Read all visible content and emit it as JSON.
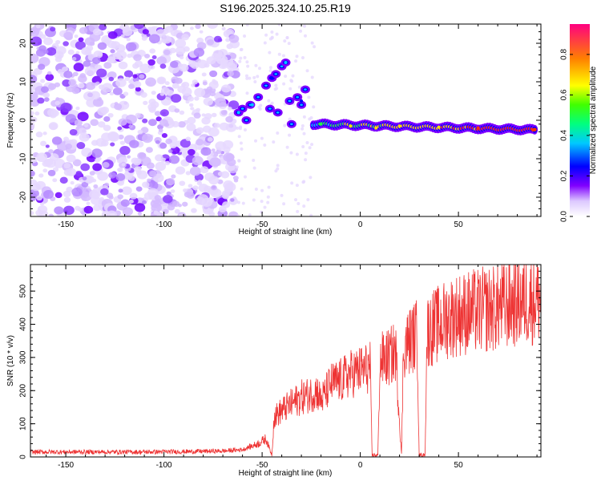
{
  "title": "S196.2025.324.10.25.R19",
  "chart_data": [
    {
      "type": "heatmap",
      "title": "S196.2025.324.10.25.R19",
      "xlabel": "Height of straight line (km)",
      "ylabel": "Frequency (Hz)",
      "xlim": [
        -168,
        92
      ],
      "ylim": [
        -25,
        25
      ],
      "xticks": [
        -150,
        -100,
        -50,
        0,
        50
      ],
      "xtick_labels": [
        "-150",
        "-100",
        "-50",
        "0",
        "50"
      ],
      "yticks": [
        -20,
        -10,
        0,
        10,
        20
      ],
      "ytick_labels": [
        "-20",
        "-10",
        "0",
        "10",
        "20"
      ],
      "colorbar": {
        "label": "Normalized spectral amplitude",
        "range": [
          0,
          0.95
        ],
        "ticks": [
          0,
          0.2,
          0.4,
          0.6,
          0.8
        ],
        "tick_labels": [
          "0.0",
          "0.2",
          "0.4",
          "0.6",
          "0.8"
        ]
      },
      "description_points": [
        {
          "height_km": -62,
          "freq_hz": 2,
          "amplitude": 0.3
        },
        {
          "height_km": -55,
          "freq_hz": 4,
          "amplitude": 0.3
        },
        {
          "height_km": -45,
          "freq_hz": 11,
          "amplitude": 0.2
        },
        {
          "height_km": -38,
          "freq_hz": 15,
          "amplitude": 0.3
        },
        {
          "height_km": -30,
          "freq_hz": 5,
          "amplitude": 0.25
        },
        {
          "height_km": -20,
          "freq_hz": -1,
          "amplitude": 0.45
        },
        {
          "height_km": -5,
          "freq_hz": -1.5,
          "amplitude": 0.55
        },
        {
          "height_km": 8,
          "freq_hz": -2,
          "amplitude": 0.6
        },
        {
          "height_km": 20,
          "freq_hz": -1.5,
          "amplitude": 0.55
        },
        {
          "height_km": 40,
          "freq_hz": -1.8,
          "amplitude": 0.65
        },
        {
          "height_km": 60,
          "freq_hz": -2,
          "amplitude": 0.8
        },
        {
          "height_km": 88,
          "freq_hz": -2.5,
          "amplitude": 0.85
        }
      ]
    },
    {
      "type": "line",
      "xlabel": "Height of straight line (km)",
      "ylabel": "SNR (10 * v/v)",
      "xlim": [
        -168,
        92
      ],
      "ylim": [
        0,
        580
      ],
      "xticks": [
        -150,
        -100,
        -50,
        0,
        50
      ],
      "xtick_labels": [
        "-150",
        "-100",
        "-50",
        "0",
        "50"
      ],
      "yticks": [
        0,
        100,
        200,
        300,
        400,
        500
      ],
      "ytick_labels": [
        "0",
        "100",
        "200",
        "300",
        "400",
        "500"
      ],
      "series": [
        {
          "name": "SNR",
          "color": "#ee3333",
          "x": [
            -168,
            -150,
            -130,
            -110,
            -90,
            -70,
            -60,
            -52,
            -48,
            -45,
            -44,
            -40,
            -35,
            -30,
            -27,
            -25,
            -22,
            -20,
            -15,
            -10,
            -5,
            0,
            5,
            6,
            9,
            10,
            15,
            18,
            21,
            22,
            25,
            29,
            30,
            33,
            34,
            40,
            45,
            50,
            60,
            70,
            80,
            92
          ],
          "y": [
            15,
            15,
            15,
            15,
            16,
            18,
            22,
            40,
            55,
            5,
            120,
            140,
            160,
            180,
            185,
            190,
            200,
            170,
            220,
            230,
            250,
            260,
            270,
            5,
            5,
            290,
            300,
            320,
            5,
            330,
            350,
            370,
            5,
            5,
            380,
            400,
            420,
            430,
            440,
            450,
            470,
            480
          ]
        }
      ]
    }
  ]
}
